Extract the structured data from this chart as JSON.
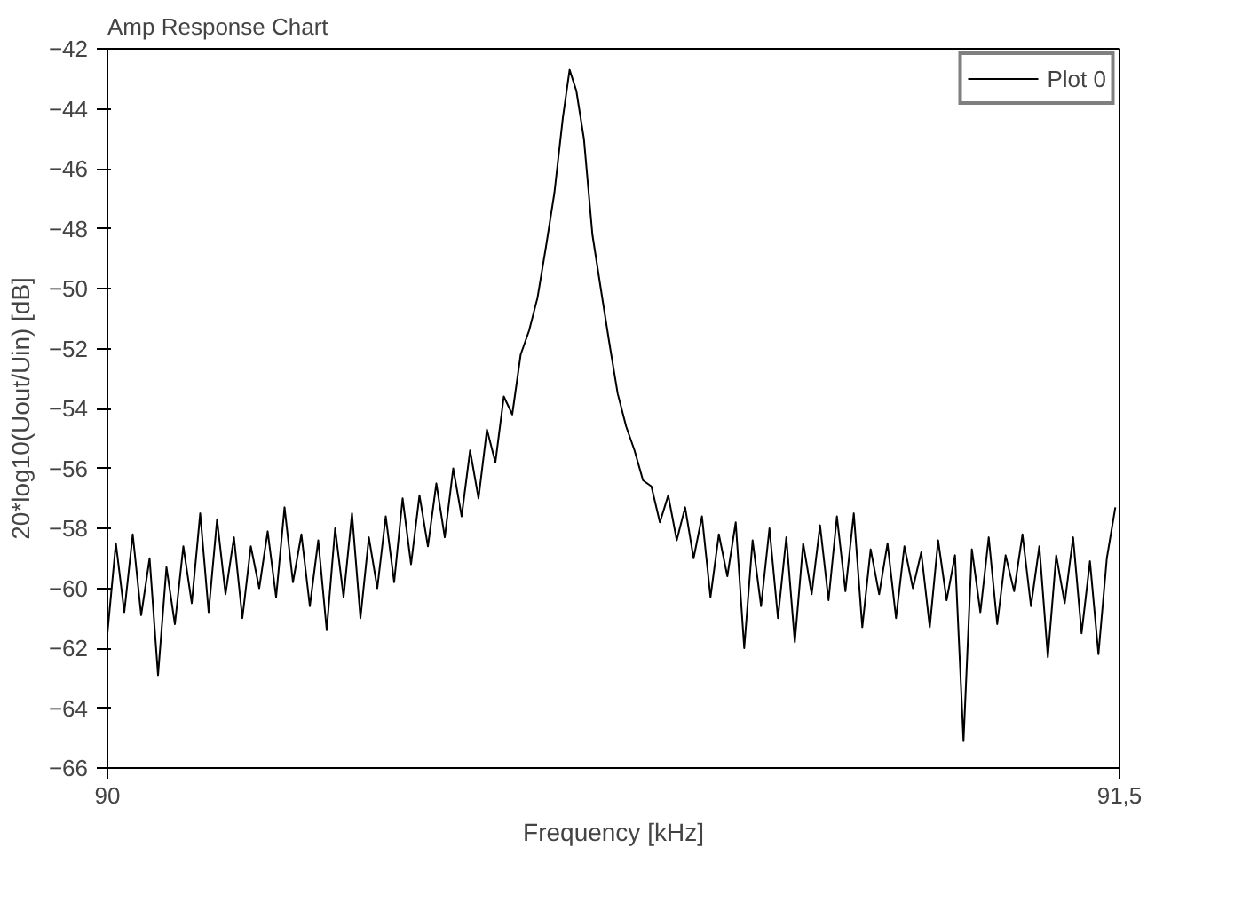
{
  "chart_data": {
    "type": "line",
    "title": "Amp Response Chart",
    "xlabel": "Frequency [kHz]",
    "ylabel": "20*log10(Uout/Uin) [dB]",
    "xlim": [
      90,
      91.5
    ],
    "xticks": [
      90,
      {
        "value": 91.5,
        "label": "91,5"
      }
    ],
    "ylim": [
      -66,
      -42
    ],
    "yticks": [
      -66,
      -64,
      -62,
      -60,
      -58,
      -56,
      -54,
      -52,
      -50,
      -48,
      -46,
      -44,
      -42
    ],
    "grid": false,
    "legend": "top right",
    "line_style": "solid",
    "marker": "none",
    "series": [
      {
        "name": "Plot 0",
        "color": "#000000",
        "x": [
          90.0,
          90.0125,
          90.025,
          90.0375,
          90.05,
          90.0625,
          90.075,
          90.0875,
          90.1,
          90.1125,
          90.125,
          90.1375,
          90.15,
          90.1625,
          90.175,
          90.1875,
          90.2,
          90.2125,
          90.225,
          90.2375,
          90.25,
          90.2625,
          90.275,
          90.2875,
          90.3,
          90.3125,
          90.325,
          90.3375,
          90.35,
          90.3625,
          90.375,
          90.3875,
          90.4,
          90.4125,
          90.425,
          90.4375,
          90.45,
          90.4625,
          90.475,
          90.4875,
          90.5,
          90.5125,
          90.525,
          90.5375,
          90.55,
          90.5625,
          90.575,
          90.5875,
          90.6,
          90.6125,
          90.625,
          90.6375,
          90.65,
          90.6625,
          90.675,
          90.685,
          90.695,
          90.7062,
          90.7188,
          90.7312,
          90.7438,
          90.7562,
          90.7688,
          90.7812,
          90.7938,
          90.8062,
          90.8188,
          90.8312,
          90.8438,
          90.8562,
          90.8688,
          90.8812,
          90.8938,
          90.9062,
          90.9188,
          90.9312,
          90.9438,
          90.9562,
          90.9688,
          90.9812,
          90.9938,
          91.0062,
          91.0188,
          91.0312,
          91.0438,
          91.0562,
          91.0688,
          91.0812,
          91.0938,
          91.1062,
          91.1188,
          91.1312,
          91.1438,
          91.1562,
          91.1688,
          91.1812,
          91.1938,
          91.2062,
          91.2188,
          91.2312,
          91.2438,
          91.2562,
          91.2688,
          91.2812,
          91.2938,
          91.3062,
          91.3188,
          91.3312,
          91.3438,
          91.3562,
          91.3688,
          91.3812,
          91.3938,
          91.4062,
          91.4188,
          91.4312,
          91.4438,
          91.4562,
          91.4688,
          91.4812,
          91.4938
        ],
        "values": [
          -61.5,
          -58.5,
          -60.8,
          -58.2,
          -60.9,
          -59.0,
          -62.9,
          -59.3,
          -61.2,
          -58.6,
          -60.5,
          -57.5,
          -60.8,
          -57.7,
          -60.2,
          -58.3,
          -61.0,
          -58.6,
          -60.0,
          -58.1,
          -60.3,
          -57.3,
          -59.8,
          -58.2,
          -60.6,
          -58.4,
          -61.4,
          -58.0,
          -60.3,
          -57.5,
          -61.0,
          -58.3,
          -60.0,
          -57.6,
          -59.8,
          -57.0,
          -59.2,
          -56.9,
          -58.6,
          -56.5,
          -58.3,
          -56.0,
          -57.6,
          -55.4,
          -57.0,
          -54.7,
          -55.8,
          -53.6,
          -54.2,
          -52.2,
          -51.4,
          -50.3,
          -48.6,
          -46.8,
          -44.3,
          -42.7,
          -43.4,
          -45.0,
          -48.2,
          -50.0,
          -51.8,
          -53.5,
          -54.6,
          -55.4,
          -56.4,
          -56.6,
          -57.8,
          -56.9,
          -58.4,
          -57.3,
          -59.0,
          -57.6,
          -60.3,
          -58.2,
          -59.6,
          -57.8,
          -62.0,
          -58.4,
          -60.6,
          -58.0,
          -61.0,
          -58.3,
          -61.8,
          -58.5,
          -60.2,
          -57.9,
          -60.4,
          -57.6,
          -60.1,
          -57.5,
          -61.3,
          -58.7,
          -60.2,
          -58.5,
          -61.0,
          -58.6,
          -60.0,
          -58.8,
          -61.3,
          -58.4,
          -60.4,
          -58.9,
          -65.1,
          -58.7,
          -60.8,
          -58.3,
          -61.2,
          -58.9,
          -60.1,
          -58.2,
          -60.6,
          -58.6,
          -62.3,
          -58.9,
          -60.5,
          -58.3,
          -61.5,
          -59.1,
          -62.2,
          -59.0,
          -57.3
        ]
      }
    ]
  }
}
